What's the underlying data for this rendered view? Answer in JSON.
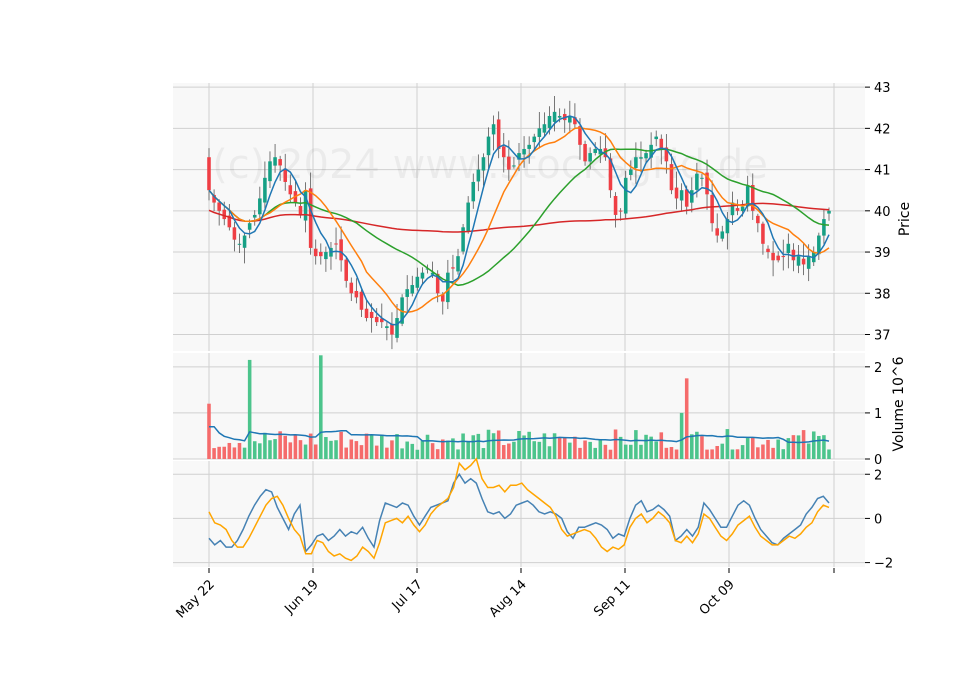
{
  "chart_data": {
    "type": "candlestick",
    "watermark": "(c) 2024 www.stocksgrid.de",
    "x_tick_labels": [
      "May 22",
      "Jun 19",
      "Jul 17",
      "Aug 14",
      "Sep 11",
      "Oct 09"
    ],
    "colors": {
      "up": "#16a085",
      "down": "#ef3e44",
      "up_volume": "#4cc48c",
      "down_volume": "#f56b6b",
      "ma_fast": "#1f77b4",
      "ma_mid": "#ff7f0e",
      "ma_slow": "#2ca02c",
      "ma_long": "#d62728",
      "vol_ma": "#1f77b4",
      "osc_1": "#4682b4",
      "osc_2": "#ffa500",
      "panel_bg": "#f8f8f8",
      "grid": "#d0d0d0"
    },
    "price_panel": {
      "ylabel": "Price",
      "ylim": [
        36.6,
        43.1
      ],
      "yticks": [
        37,
        38,
        39,
        40,
        41,
        42,
        43
      ],
      "close": [
        40.5,
        40.2,
        40.0,
        39.8,
        39.6,
        39.3,
        39.2,
        39.4,
        39.7,
        39.9,
        40.3,
        40.8,
        41.2,
        41.3,
        41.1,
        40.7,
        40.4,
        40.2,
        39.9,
        40.5,
        39.1,
        38.9,
        38.9,
        39.0,
        39.1,
        39.2,
        38.8,
        38.3,
        38.0,
        37.9,
        37.6,
        37.4,
        37.4,
        37.3,
        37.3,
        37.2,
        37.0,
        37.4,
        37.9,
        38.1,
        38.2,
        38.4,
        38.5,
        38.6,
        38.5,
        38.0,
        37.8,
        38.5,
        38.6,
        38.9,
        39.6,
        40.2,
        40.7,
        41.0,
        41.3,
        41.8,
        42.1,
        41.5,
        41.3,
        41.0,
        41.1,
        41.4,
        41.5,
        41.6,
        41.8,
        42.0,
        42.1,
        42.3,
        42.4,
        42.3,
        42.2,
        42.3,
        42.1,
        41.6,
        41.2,
        41.4,
        41.5,
        41.5,
        41.3,
        40.5,
        39.9,
        40.0,
        40.8,
        41.0,
        41.3,
        41.3,
        41.4,
        41.6,
        41.8,
        41.5,
        41.2,
        40.5,
        40.3,
        40.5,
        40.1,
        40.5,
        40.9,
        40.8,
        40.4,
        39.7,
        39.4,
        39.5,
        39.8,
        40.2,
        40.0,
        40.1,
        40.6,
        40.0,
        39.7,
        39.2,
        39.0,
        38.8,
        38.8,
        38.9,
        39.2,
        38.8,
        38.9,
        38.7,
        38.9,
        39.0,
        39.4,
        39.8,
        40.0
      ],
      "moving_averages": [
        "ma_fast",
        "ma_mid",
        "ma_slow",
        "ma_long"
      ]
    },
    "volume_panel": {
      "ylabel": "Volume  10^6",
      "ylim": [
        0,
        2.3
      ],
      "yticks": [
        0,
        1,
        2
      ],
      "spikes": [
        {
          "index": 0,
          "value": 1.2
        },
        {
          "index": 8,
          "value": 2.15
        },
        {
          "index": 22,
          "value": 2.25
        },
        {
          "index": 94,
          "value": 1.75
        },
        {
          "index": 93,
          "value": 1.0
        }
      ]
    },
    "oscillator_panel": {
      "ylim": [
        -2.2,
        2.6
      ],
      "yticks": [
        -2,
        0,
        2
      ],
      "series": [
        {
          "name": "osc_1",
          "values": [
            -0.9,
            -1.2,
            -1.0,
            -1.3,
            -1.3,
            -1.0,
            -0.5,
            0.1,
            0.6,
            1.0,
            1.3,
            1.2,
            0.5,
            0.0,
            -0.5,
            0.2,
            0.6,
            -1.5,
            -1.2,
            -0.8,
            -0.7,
            -1.0,
            -0.8,
            -0.5,
            -0.8,
            -0.6,
            -0.7,
            -0.4,
            -0.9,
            -1.3,
            -0.1,
            0.7,
            0.6,
            0.5,
            0.7,
            0.6,
            0.1,
            -0.3,
            0.1,
            0.5,
            0.6,
            0.7,
            0.8,
            1.6,
            2.0,
            1.6,
            1.8,
            1.6,
            0.9,
            0.3,
            0.2,
            0.3,
            0.0,
            0.2,
            0.6,
            0.7,
            0.8,
            0.6,
            0.3,
            0.2,
            0.3,
            0.2,
            0.0,
            -0.6,
            -0.9,
            -0.4,
            -0.4,
            -0.3,
            -0.2,
            -0.3,
            -0.5,
            -0.9,
            -0.7,
            -0.8,
            0.0,
            0.6,
            0.8,
            0.3,
            0.4,
            0.6,
            0.4,
            0.1,
            -1.0,
            -0.8,
            -0.5,
            -0.8,
            -0.4,
            0.7,
            0.4,
            0.0,
            -0.4,
            -0.4,
            0.1,
            0.6,
            0.8,
            0.6,
            0.0,
            -0.5,
            -0.8,
            -1.1,
            -1.2,
            -0.9,
            -0.7,
            -0.5,
            -0.3,
            0.2,
            0.5,
            0.9,
            1.0,
            0.7
          ],
          "source_note": ""
        },
        {
          "name": "osc_2",
          "values": [
            0.3,
            -0.2,
            -0.3,
            -0.5,
            -1.0,
            -1.3,
            -1.3,
            -0.9,
            -0.4,
            0.1,
            0.6,
            0.9,
            1.0,
            0.6,
            0.0,
            -0.5,
            -0.8,
            -1.6,
            -1.6,
            -1.0,
            -1.1,
            -1.5,
            -1.7,
            -1.6,
            -1.8,
            -1.9,
            -1.7,
            -1.3,
            -1.5,
            -1.8,
            -1.1,
            -0.2,
            -0.1,
            0.0,
            -0.2,
            0.1,
            -0.3,
            -0.6,
            -0.3,
            0.2,
            0.5,
            0.7,
            0.9,
            1.4,
            2.5,
            2.2,
            2.4,
            2.7,
            1.8,
            1.4,
            1.4,
            1.5,
            1.2,
            1.5,
            1.5,
            1.6,
            1.3,
            1.1,
            0.9,
            0.7,
            0.5,
            0.1,
            -0.5,
            -0.8,
            -0.7,
            -0.6,
            -0.5,
            -0.6,
            -0.9,
            -1.3,
            -1.5,
            -1.3,
            -1.4,
            -1.2,
            -0.4,
            0.0,
            0.2,
            -0.2,
            0.0,
            0.3,
            0.1,
            -0.2,
            -1.0,
            -1.1,
            -0.8,
            -1.1,
            -0.7,
            0.2,
            0.0,
            -0.4,
            -0.8,
            -1.0,
            -0.7,
            -0.3,
            -0.1,
            0.1,
            -0.4,
            -0.8,
            -1.0,
            -1.2,
            -1.2,
            -1.0,
            -0.8,
            -0.9,
            -0.7,
            -0.4,
            -0.2,
            0.3,
            0.6,
            0.5
          ]
        }
      ]
    }
  }
}
